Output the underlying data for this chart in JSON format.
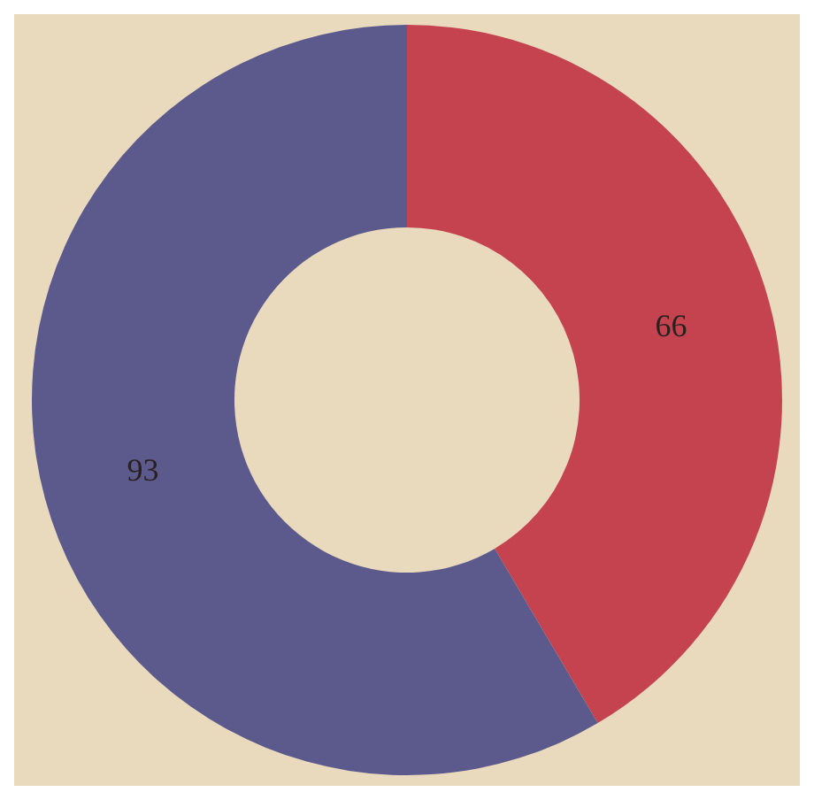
{
  "chart_data": {
    "type": "donut",
    "categories": [
      null,
      null
    ],
    "values": [
      66,
      93
    ],
    "colors": [
      "#c4434f",
      "#5c5a8c"
    ],
    "data_labels": true,
    "legend": false
  }
}
